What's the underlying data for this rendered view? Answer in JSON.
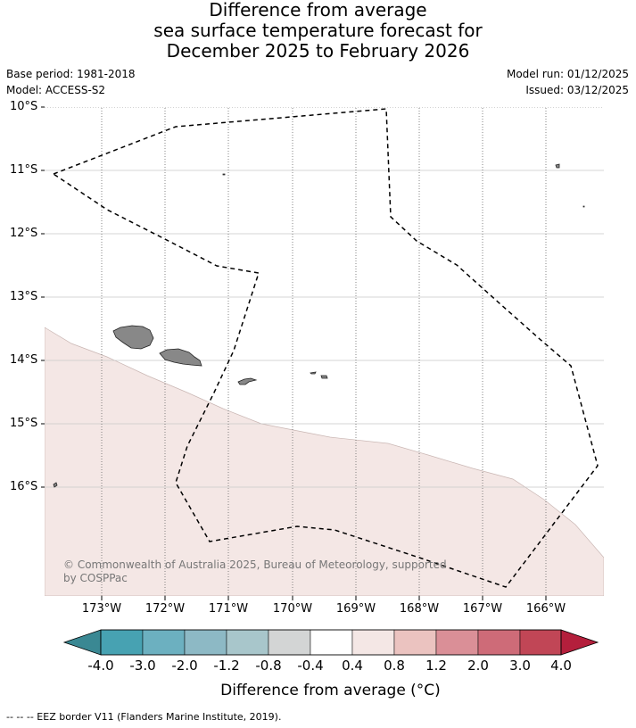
{
  "title": {
    "line1": "Difference from average",
    "line2": "sea surface temperature forecast for",
    "line3": "December 2025 to February 2026"
  },
  "meta": {
    "base_period": "Base period: 1981-2018",
    "model": "Model: ACCESS-S2",
    "model_run": "Model run: 01/12/2025",
    "issued": "Issued: 03/12/2025"
  },
  "map": {
    "lat_labels": [
      "10°S",
      "11°S",
      "12°S",
      "13°S",
      "14°S",
      "15°S",
      "16°S"
    ],
    "lon_labels": [
      "173°W",
      "172°W",
      "171°W",
      "170°W",
      "169°W",
      "168°W",
      "167°W",
      "166°W"
    ],
    "anomaly_fill_color": "#f4e7e5",
    "land_color": "#888888",
    "eez_line_color": "#000000"
  },
  "credit": {
    "line1": "© Commonwealth of Australia 2025, Bureau of Meteorology, supported",
    "line2": "by COSPPac"
  },
  "colorbar": {
    "labels": [
      "-4.0",
      "-3.0",
      "-2.0",
      "-1.2",
      "-0.8",
      "-0.4",
      "0.4",
      "0.8",
      "1.2",
      "2.0",
      "3.0",
      "4.0"
    ],
    "colors": [
      "#3a8893",
      "#47a2b2",
      "#6cb0c0",
      "#8db9c5",
      "#a8c6cb",
      "#d3d5d5",
      "#ffffff",
      "#f4e7e5",
      "#ebc3c0",
      "#da8f97",
      "#ce6b78",
      "#c14656",
      "#b41f3c"
    ],
    "title": "Difference from average (°C)"
  },
  "footer": {
    "text": "-- -- -- EEZ border V11 (Flanders Marine Institute, 2019)."
  }
}
